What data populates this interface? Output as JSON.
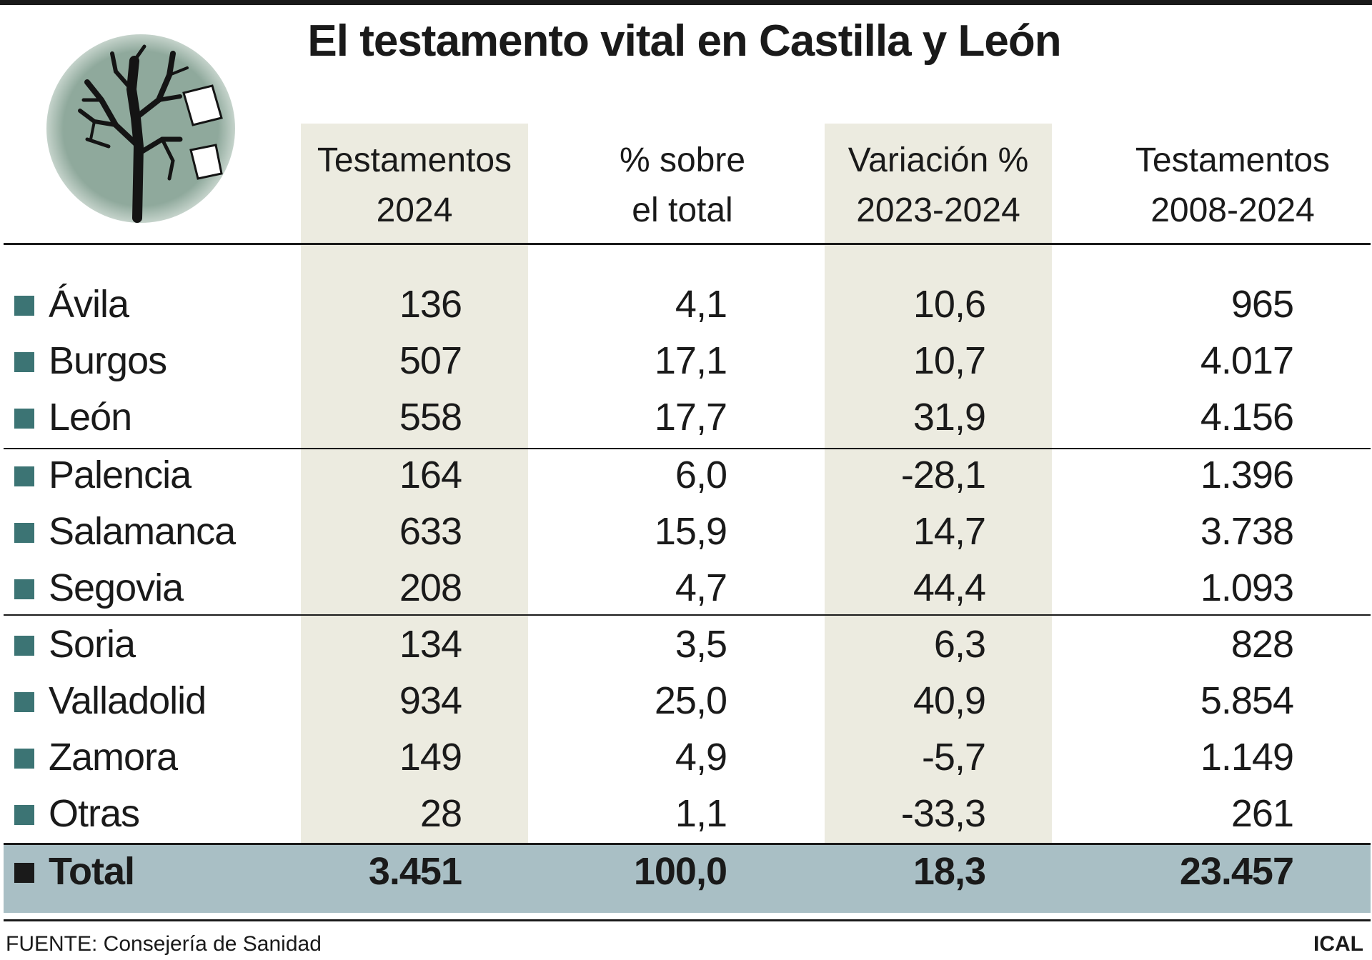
{
  "title": "El testamento vital en Castilla y León",
  "logo": {
    "icon": "tree-with-papers-icon"
  },
  "chart_data": {
    "type": "table",
    "columns": [
      {
        "line1": "Testamentos",
        "line2": "2024"
      },
      {
        "line1": "% sobre",
        "line2": "el total"
      },
      {
        "line1": "Variación %",
        "line2": "2023-2024"
      },
      {
        "line1": "Testamentos",
        "line2": "2008-2024"
      }
    ],
    "rows": [
      {
        "name": "Ávila",
        "v1": "136",
        "v2": "4,1",
        "v3": "10,6",
        "v4": "965"
      },
      {
        "name": "Burgos",
        "v1": "507",
        "v2": "17,1",
        "v3": "10,7",
        "v4": "4.017"
      },
      {
        "name": "León",
        "v1": "558",
        "v2": "17,7",
        "v3": "31,9",
        "v4": "4.156"
      },
      {
        "name": "Palencia",
        "v1": "164",
        "v2": "6,0",
        "v3": "-28,1",
        "v4": "1.396"
      },
      {
        "name": "Salamanca",
        "v1": "633",
        "v2": "15,9",
        "v3": "14,7",
        "v4": "3.738"
      },
      {
        "name": "Segovia",
        "v1": "208",
        "v2": "4,7",
        "v3": "44,4",
        "v4": "1.093"
      },
      {
        "name": "Soria",
        "v1": "134",
        "v2": "3,5",
        "v3": "6,3",
        "v4": "828"
      },
      {
        "name": "Valladolid",
        "v1": "934",
        "v2": "25,0",
        "v3": "40,9",
        "v4": "5.854"
      },
      {
        "name": "Zamora",
        "v1": "149",
        "v2": "4,9",
        "v3": "-5,7",
        "v4": "1.149"
      },
      {
        "name": "Otras",
        "v1": "28",
        "v2": "1,1",
        "v3": "-33,3",
        "v4": "261"
      }
    ],
    "total": {
      "name": "Total",
      "v1": "3.451",
      "v2": "100,0",
      "v3": "18,3",
      "v4": "23.457"
    }
  },
  "footer": {
    "source": "FUENTE: Consejería de Sanidad",
    "brand": "ICAL"
  },
  "colors": {
    "marker": "#3c7474",
    "column_shade": "#ecebe0",
    "total_band": "#a9bfc5",
    "logo_circle": "#8fa99c"
  }
}
